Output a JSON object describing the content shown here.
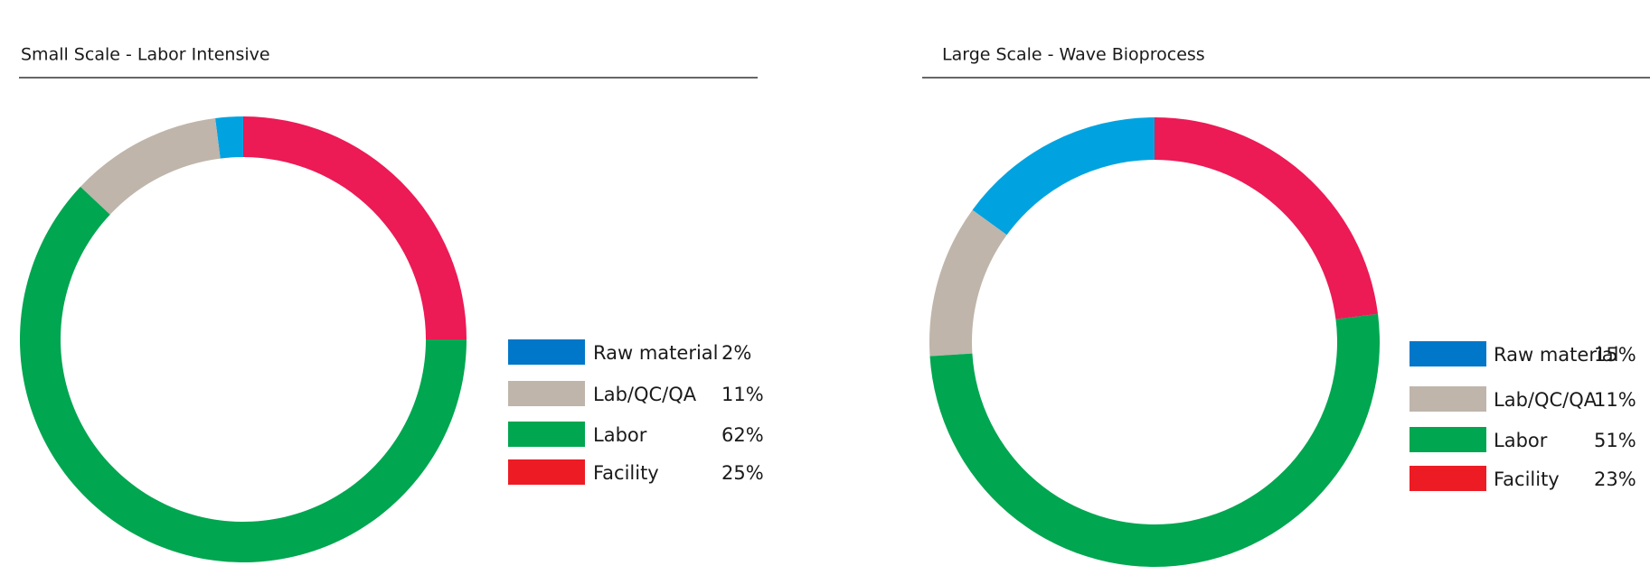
{
  "chart_data": [
    {
      "type": "donut",
      "title": "Small Scale - Labor Intensive",
      "categories": [
        "Raw material",
        "Lab/QC/QA",
        "Labor",
        "Facility"
      ],
      "values": [
        2,
        11,
        62,
        25
      ],
      "value_labels": [
        "2%",
        "11%",
        "62%",
        "25%"
      ],
      "colors": [
        "#00a3e0",
        "#bfb5aa",
        "#00a650",
        "#ec1a55"
      ],
      "legend_colors": [
        "#0077c8",
        "#bfb5aa",
        "#00a650",
        "#ed1c24"
      ]
    },
    {
      "type": "donut",
      "title": "Large Scale - Wave Bioprocess",
      "categories": [
        "Raw material",
        "Lab/QC/QA",
        "Labor",
        "Facility"
      ],
      "values": [
        15,
        11,
        51,
        23
      ],
      "value_labels": [
        "15%",
        "11%",
        "51%",
        "23%"
      ],
      "colors": [
        "#00a3e0",
        "#bfb5aa",
        "#00a650",
        "#ec1a55"
      ],
      "legend_colors": [
        "#0077c8",
        "#bfb5aa",
        "#00a650",
        "#ed1c24"
      ]
    }
  ]
}
